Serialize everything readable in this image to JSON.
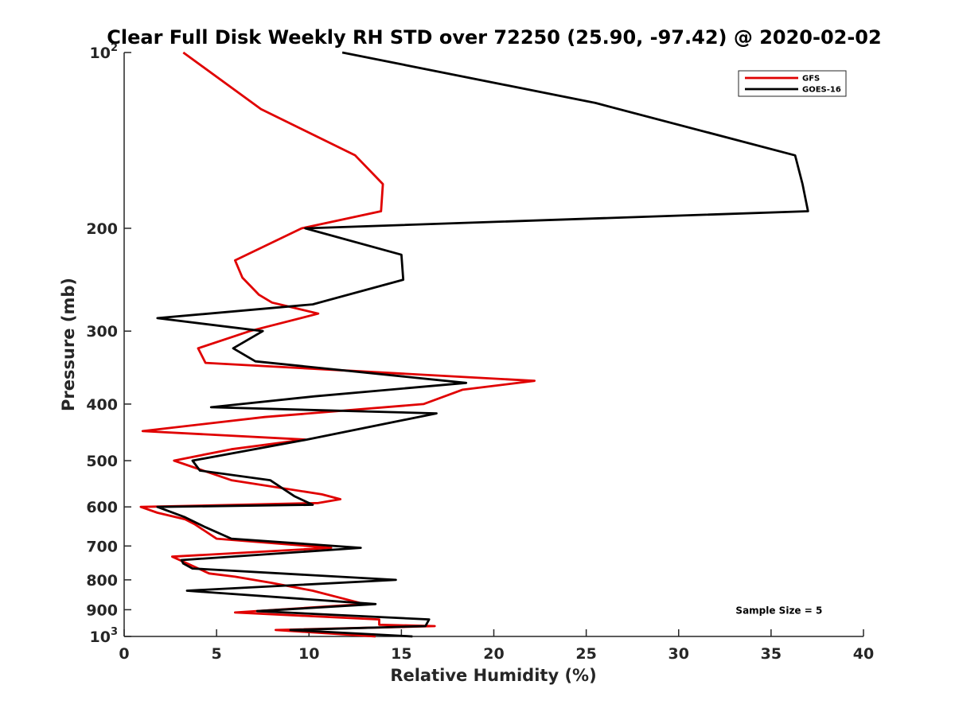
{
  "chart_data": {
    "type": "line",
    "title": "Clear Full Disk Weekly RH STD over 72250 (25.90, -97.42) @ 2020-02-02",
    "xlabel": "Relative Humidity (%)",
    "ylabel": "Pressure (mb)",
    "xlim": [
      0,
      40
    ],
    "ylim": [
      100,
      1000
    ],
    "y_scale": "log",
    "y_reversed": true,
    "grid": false,
    "legend_position": "top-right",
    "x_ticks": [
      0,
      5,
      10,
      15,
      20,
      25,
      30,
      35,
      40
    ],
    "y_ticks": [
      {
        "value": 100,
        "label": "10",
        "exp": "2"
      },
      {
        "value": 200,
        "label": "200",
        "exp": ""
      },
      {
        "value": 300,
        "label": "300",
        "exp": ""
      },
      {
        "value": 400,
        "label": "400",
        "exp": ""
      },
      {
        "value": 500,
        "label": "500",
        "exp": ""
      },
      {
        "value": 600,
        "label": "600",
        "exp": ""
      },
      {
        "value": 700,
        "label": "700",
        "exp": ""
      },
      {
        "value": 800,
        "label": "800",
        "exp": ""
      },
      {
        "value": 900,
        "label": "900",
        "exp": ""
      },
      {
        "value": 1000,
        "label": "10",
        "exp": "3"
      }
    ],
    "series": [
      {
        "name": "GFS",
        "color": "#e00000",
        "points": [
          [
            3.2,
            100
          ],
          [
            7.4,
            125
          ],
          [
            12.5,
            150
          ],
          [
            14.0,
            168
          ],
          [
            13.9,
            187
          ],
          [
            9.6,
            200
          ],
          [
            6.0,
            227
          ],
          [
            6.4,
            243
          ],
          [
            7.3,
            260
          ],
          [
            8.0,
            268
          ],
          [
            10.5,
            280
          ],
          [
            6.8,
            300
          ],
          [
            4.0,
            321
          ],
          [
            4.4,
            340
          ],
          [
            22.2,
            365
          ],
          [
            18.3,
            378
          ],
          [
            16.2,
            400
          ],
          [
            7.6,
            421
          ],
          [
            1.0,
            445
          ],
          [
            9.8,
            460
          ],
          [
            5.8,
            478
          ],
          [
            2.7,
            500
          ],
          [
            5.8,
            540
          ],
          [
            10.7,
            571
          ],
          [
            11.7,
            582
          ],
          [
            10.5,
            591
          ],
          [
            0.9,
            600
          ],
          [
            1.8,
            614
          ],
          [
            3.3,
            630
          ],
          [
            3.8,
            642
          ],
          [
            5.0,
            680
          ],
          [
            11.2,
            705
          ],
          [
            2.6,
            730
          ],
          [
            4.6,
            780
          ],
          [
            6.0,
            790
          ],
          [
            8.0,
            810
          ],
          [
            10.2,
            835
          ],
          [
            13.0,
            880
          ],
          [
            6.0,
            910
          ],
          [
            13.8,
            935
          ],
          [
            13.8,
            955
          ],
          [
            16.8,
            960
          ],
          [
            8.2,
            975
          ],
          [
            13.6,
            1000
          ]
        ]
      },
      {
        "name": "GOES-16",
        "color": "#000000",
        "points": [
          [
            11.8,
            100
          ],
          [
            25.5,
            122
          ],
          [
            36.3,
            150
          ],
          [
            36.7,
            168
          ],
          [
            37.0,
            187
          ],
          [
            9.8,
            200
          ],
          [
            15.0,
            222
          ],
          [
            15.1,
            245
          ],
          [
            10.2,
            270
          ],
          [
            1.8,
            285
          ],
          [
            7.5,
            300
          ],
          [
            5.9,
            321
          ],
          [
            7.1,
            338
          ],
          [
            18.5,
            368
          ],
          [
            10.3,
            388
          ],
          [
            4.7,
            405
          ],
          [
            16.9,
            415
          ],
          [
            9.9,
            460
          ],
          [
            3.7,
            500
          ],
          [
            4.1,
            520
          ],
          [
            7.9,
            540
          ],
          [
            9.2,
            575
          ],
          [
            10.2,
            595
          ],
          [
            1.8,
            600
          ],
          [
            3.3,
            625
          ],
          [
            4.4,
            650
          ],
          [
            5.8,
            680
          ],
          [
            12.8,
            705
          ],
          [
            3.1,
            740
          ],
          [
            3.2,
            750
          ],
          [
            3.7,
            765
          ],
          [
            14.7,
            800
          ],
          [
            3.4,
            835
          ],
          [
            13.6,
            880
          ],
          [
            7.2,
            905
          ],
          [
            16.5,
            935
          ],
          [
            16.3,
            960
          ],
          [
            9.0,
            975
          ],
          [
            15.6,
            1000
          ]
        ]
      }
    ],
    "annotations": [
      {
        "text": "Sample Size = 5",
        "x": 33,
        "y": 900
      }
    ]
  }
}
